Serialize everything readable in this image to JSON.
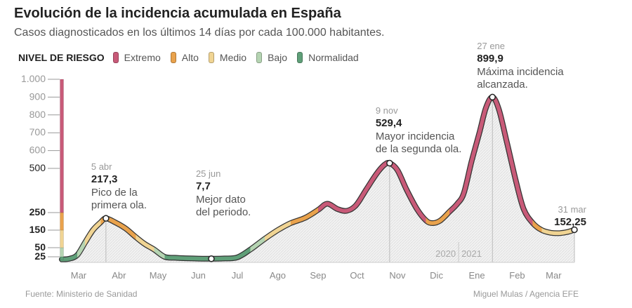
{
  "header": {
    "title": "Evolución de la incidencia acumulada en España",
    "subtitle": "Casos diagnosticados en los últimos 14 días por cada 100.000 habitantes."
  },
  "legend": {
    "title": "NIVEL DE RIESGO",
    "items": [
      {
        "label": "Extremo",
        "color": "#c85a78"
      },
      {
        "label": "Alto",
        "color": "#e9a24c"
      },
      {
        "label": "Medio",
        "color": "#f0d493"
      },
      {
        "label": "Bajo",
        "color": "#b5d4b2"
      },
      {
        "label": "Normalidad",
        "color": "#5f9f78"
      }
    ]
  },
  "footer": {
    "source": "Fuente: Ministerio de Sanidad",
    "credit": "Miguel Mulas / Agencia EFE"
  },
  "chart_data": {
    "type": "line",
    "title": "Evolución de la incidencia acumulada en España",
    "subtitle": "Casos diagnosticados en los últimos 14 días por cada 100.000 habitantes.",
    "xlabel": "",
    "ylabel": "",
    "x_range": [
      "2020-03-01",
      "2021-03-31"
    ],
    "y_scale": "piecewise",
    "y_ticks": [
      {
        "value": 25,
        "label": "25"
      },
      {
        "value": 50,
        "label": "50"
      },
      {
        "value": 150,
        "label": "150"
      },
      {
        "value": 250,
        "label": "250"
      },
      {
        "value": 500,
        "label": "500"
      },
      {
        "value": 600,
        "label": "600"
      },
      {
        "value": 700,
        "label": "700"
      },
      {
        "value": 800,
        "label": "800"
      },
      {
        "value": 900,
        "label": "900"
      },
      {
        "value": 1000,
        "label": "1.000"
      }
    ],
    "risk_levels": [
      {
        "label": "Normalidad",
        "from": 0,
        "to": 25,
        "color": "#5f9f78"
      },
      {
        "label": "Bajo",
        "from": 25,
        "to": 50,
        "color": "#b5d4b2"
      },
      {
        "label": "Medio",
        "from": 50,
        "to": 150,
        "color": "#f0d493"
      },
      {
        "label": "Alto",
        "from": 150,
        "to": 250,
        "color": "#e9a24c"
      },
      {
        "label": "Extremo",
        "from": 250,
        "to": 1000,
        "color": "#c85a78"
      }
    ],
    "months": [
      {
        "label": "Mar",
        "date": "2020-03-15"
      },
      {
        "label": "Abr",
        "date": "2020-04-15"
      },
      {
        "label": "May",
        "date": "2020-05-15"
      },
      {
        "label": "Jun",
        "date": "2020-06-15"
      },
      {
        "label": "Jul",
        "date": "2020-07-15"
      },
      {
        "label": "Ago",
        "date": "2020-08-15"
      },
      {
        "label": "Sep",
        "date": "2020-09-15"
      },
      {
        "label": "Oct",
        "date": "2020-10-15"
      },
      {
        "label": "Nov",
        "date": "2020-11-15"
      },
      {
        "label": "Dic",
        "date": "2020-12-15"
      },
      {
        "label": "Ene",
        "date": "2021-01-15"
      },
      {
        "label": "Feb",
        "date": "2021-02-15"
      },
      {
        "label": "Mar",
        "date": "2021-03-15"
      }
    ],
    "year_labels": [
      {
        "label": "2020",
        "side": "left",
        "date": "2021-01-01"
      },
      {
        "label": "2021",
        "side": "right",
        "date": "2021-01-01"
      }
    ],
    "series": [
      {
        "points": [
          [
            "2020-03-02",
            2
          ],
          [
            "2020-03-08",
            8
          ],
          [
            "2020-03-14",
            30
          ],
          [
            "2020-03-20",
            80
          ],
          [
            "2020-03-26",
            150
          ],
          [
            "2020-04-01",
            195
          ],
          [
            "2020-04-05",
            217.3
          ],
          [
            "2020-04-12",
            195
          ],
          [
            "2020-04-20",
            160
          ],
          [
            "2020-04-28",
            110
          ],
          [
            "2020-05-05",
            70
          ],
          [
            "2020-05-12",
            45
          ],
          [
            "2020-05-20",
            25
          ],
          [
            "2020-05-28",
            16
          ],
          [
            "2020-06-05",
            12
          ],
          [
            "2020-06-15",
            9
          ],
          [
            "2020-06-25",
            7.7
          ],
          [
            "2020-07-05",
            10
          ],
          [
            "2020-07-15",
            20
          ],
          [
            "2020-07-25",
            45
          ],
          [
            "2020-08-05",
            100
          ],
          [
            "2020-08-15",
            150
          ],
          [
            "2020-08-25",
            190
          ],
          [
            "2020-09-05",
            220
          ],
          [
            "2020-09-15",
            265
          ],
          [
            "2020-09-22",
            300
          ],
          [
            "2020-09-30",
            270
          ],
          [
            "2020-10-07",
            260
          ],
          [
            "2020-10-14",
            290
          ],
          [
            "2020-10-22",
            380
          ],
          [
            "2020-10-30",
            470
          ],
          [
            "2020-11-05",
            520
          ],
          [
            "2020-11-09",
            529.4
          ],
          [
            "2020-11-15",
            490
          ],
          [
            "2020-11-22",
            380
          ],
          [
            "2020-11-30",
            270
          ],
          [
            "2020-12-07",
            205
          ],
          [
            "2020-12-12",
            190
          ],
          [
            "2020-12-18",
            205
          ],
          [
            "2020-12-25",
            255
          ],
          [
            "2020-12-31",
            300
          ],
          [
            "2021-01-05",
            360
          ],
          [
            "2021-01-11",
            540
          ],
          [
            "2021-01-17",
            700
          ],
          [
            "2021-01-22",
            840
          ],
          [
            "2021-01-27",
            899.9
          ],
          [
            "2021-02-01",
            830
          ],
          [
            "2021-02-07",
            650
          ],
          [
            "2021-02-14",
            430
          ],
          [
            "2021-02-20",
            270
          ],
          [
            "2021-02-27",
            190
          ],
          [
            "2021-03-06",
            150
          ],
          [
            "2021-03-13",
            135
          ],
          [
            "2021-03-20",
            133
          ],
          [
            "2021-03-26",
            140
          ],
          [
            "2021-03-31",
            152.25
          ]
        ]
      }
    ],
    "annotations": [
      {
        "date": "2020-04-05",
        "value": 217.3,
        "date_label": "5 abr",
        "value_label": "217,3",
        "text": [
          "Pico de la",
          "primera ola."
        ]
      },
      {
        "date": "2020-06-25",
        "value": 7.7,
        "date_label": "25 jun",
        "value_label": "7,7",
        "text": [
          "Mejor dato",
          "del periodo."
        ]
      },
      {
        "date": "2020-11-09",
        "value": 529.4,
        "date_label": "9 nov",
        "value_label": "529,4",
        "text": [
          "Mayor incidencia",
          "de la segunda ola."
        ]
      },
      {
        "date": "2021-01-27",
        "value": 899.9,
        "date_label": "27 ene",
        "value_label": "899,9",
        "text": [
          "Máxima incidencia",
          "alcanzada."
        ]
      },
      {
        "date": "2021-03-31",
        "value": 152.25,
        "date_label": "31 mar",
        "value_label": "152,25",
        "text": []
      }
    ]
  }
}
